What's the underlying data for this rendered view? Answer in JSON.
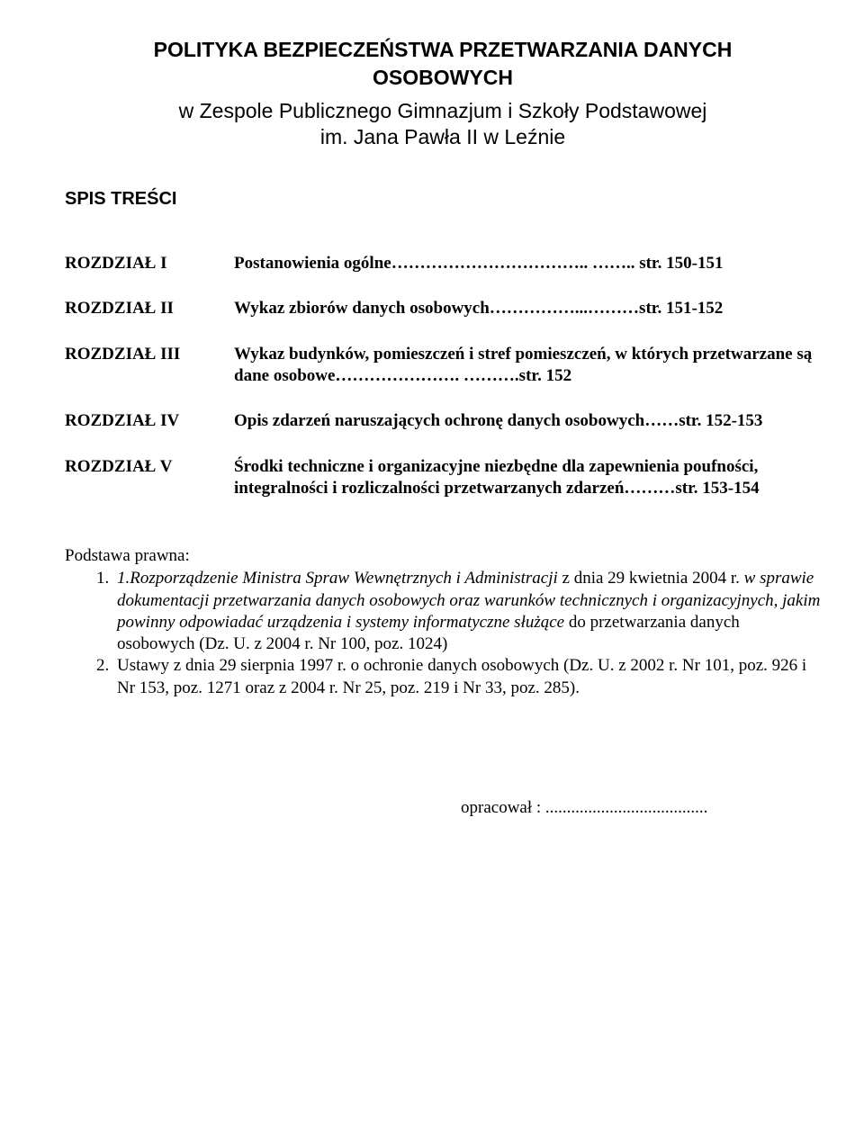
{
  "title": {
    "line1": "POLITYKA BEZPIECZEŃSTWA PRZETWARZANIA DANYCH",
    "line2": "OSOBOWYCH",
    "sub1": "w Zespole Publicznego Gimnazjum i Szkoły Podstawowej",
    "sub2": "im. Jana Pawła II w Leźnie"
  },
  "spis": "SPIS TREŚCI",
  "toc": {
    "r1_label": "ROZDZIAŁ  I",
    "r1_desc": "Postanowienia  ogólne…………………………….. …….. str. 150-151",
    "r2_label": "ROZDZIAŁ  II",
    "r2_desc": "Wykaz zbiorów danych osobowych……………...………str. 151-152",
    "r3_label": "ROZDZIAŁ  III",
    "r3_desc": "Wykaz budynków, pomieszczeń i stref pomieszczeń,  w których przetwarzane są dane osobowe…………………. ……….str. 152",
    "r4_label": "ROZDZIAŁ  IV",
    "r4_desc": "Opis zdarzeń naruszających ochronę danych osobowych……str. 152-153",
    "r5_label": "ROZDZIAŁ  V",
    "r5_desc": "Środki techniczne i organizacyjne niezbędne dla zapewnienia poufności, integralności i rozliczalności przetwarzanych zdarzeń………str. 153-154"
  },
  "podstawa": {
    "head": "Podstawa prawna:",
    "item1_lead": "1.",
    "item1_italic": "Rozporządzenie Ministra Spraw Wewnętrznych i Administracji",
    "item1_mid": " z dnia 29 kwietnia 2004 r. ",
    "item1_italic2": "w sprawie dokumentacji przetwarzania danych osobowych oraz warunków technicznych i organizacyjnych, jakim powinny odpowiadać urządzenia i systemy informatyczne służące",
    "item1_tail": " do przetwarzania danych osobowych  (Dz. U. z 2004 r. Nr 100, poz. 1024)",
    "item2": "Ustawy z dnia 29 sierpnia 1997 r. o ochronie danych osobowych (Dz. U. z 2002 r. Nr 101, poz. 926 i Nr 153, poz. 1271 oraz z 2004 r. Nr 25, poz. 219 i Nr 33, poz. 285)."
  },
  "opracowal": "opracował : ......................................"
}
